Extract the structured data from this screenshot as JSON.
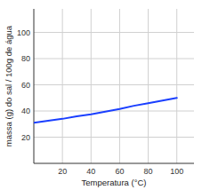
{
  "chart_data": {
    "type": "line",
    "xlabel": "Temperatura (°C)",
    "ylabel": "massa (g) do sal / 100g de água",
    "x": [
      0,
      10,
      20,
      30,
      40,
      50,
      60,
      70,
      80,
      90,
      100
    ],
    "series": [
      {
        "color": "#1a3fff",
        "values": [
          31,
          32.5,
          34,
          36,
          37.5,
          39.5,
          41.5,
          44,
          46,
          48,
          50
        ]
      }
    ],
    "xlim": [
      0,
      112
    ],
    "ylim": [
      0,
      118
    ],
    "xticks": [
      20,
      40,
      60,
      80,
      100
    ],
    "yticks": [
      20,
      40,
      60,
      80,
      100
    ],
    "grid": true
  }
}
